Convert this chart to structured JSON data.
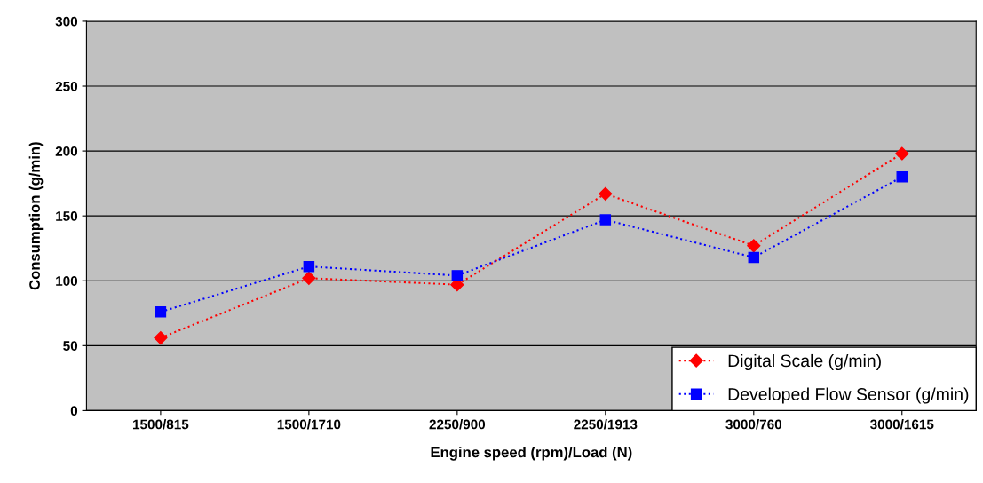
{
  "chart_data": {
    "type": "line",
    "xlabel": "Engine speed (rpm)/Load (N)",
    "ylabel": "Consumption (g/min)",
    "categories": [
      "1500/815",
      "1500/1710",
      "2250/900",
      "2250/1913",
      "3000/760",
      "3000/1615"
    ],
    "series": [
      {
        "name": "Digital Scale (g/min)",
        "color": "#ff0000",
        "marker": "diamond",
        "values": [
          56,
          102,
          97,
          167,
          127,
          198
        ]
      },
      {
        "name": "Developed Flow Sensor (g/min)",
        "color": "#0000ff",
        "marker": "square",
        "values": [
          76,
          111,
          104,
          147,
          118,
          180
        ]
      }
    ],
    "ylim": [
      0,
      300
    ],
    "yticks": [
      0,
      50,
      100,
      150,
      200,
      250,
      300
    ],
    "grid": "y",
    "legend": "bottom right",
    "line_style": "dotted"
  }
}
